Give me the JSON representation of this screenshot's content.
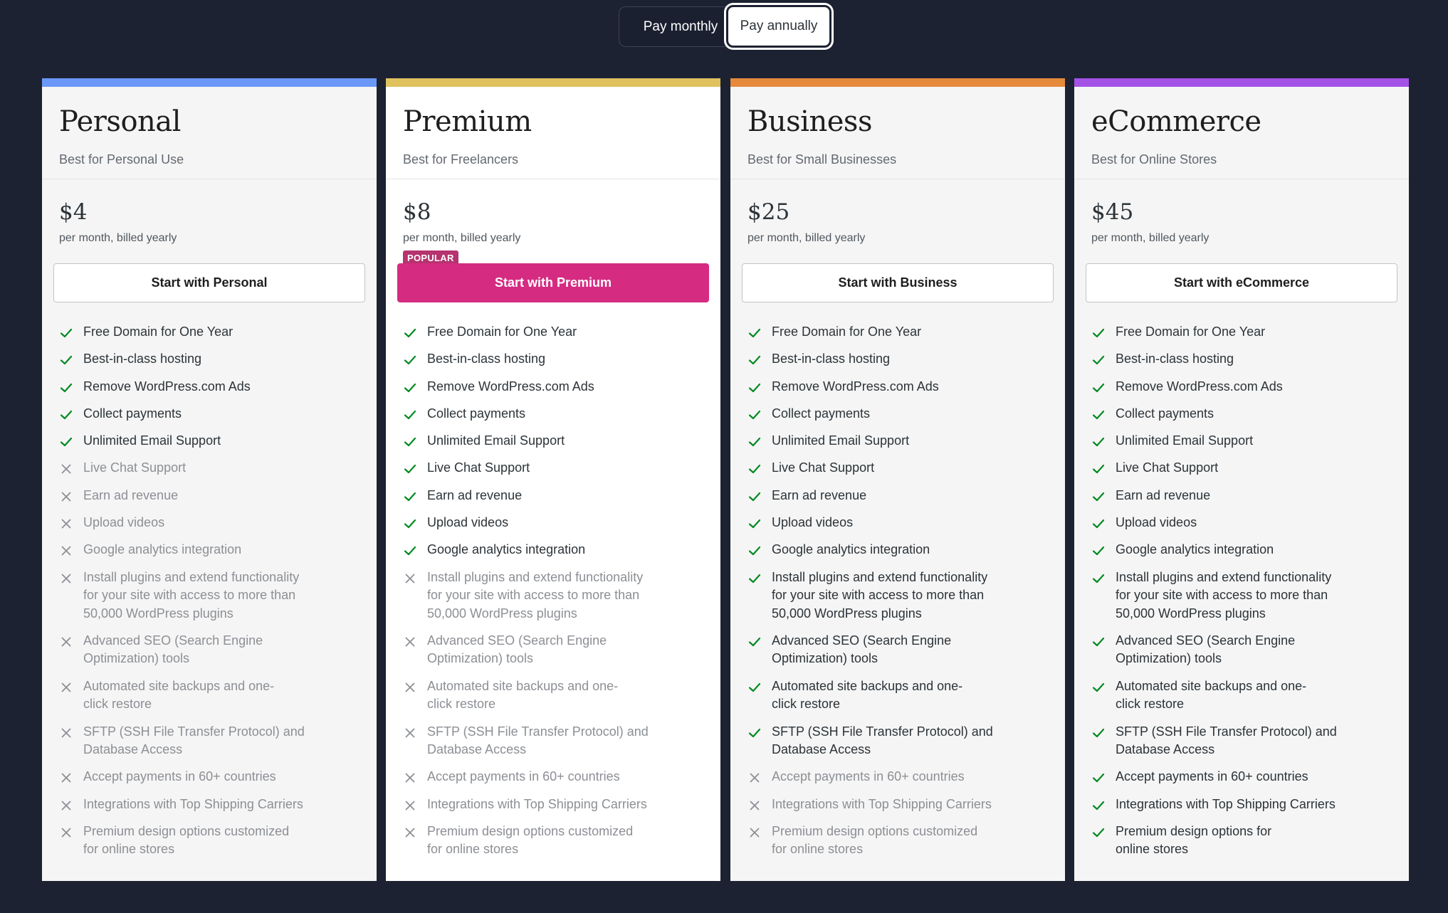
{
  "billing_toggle": {
    "monthly_label": "Pay monthly",
    "annual_label": "Pay annually",
    "selected": "annual"
  },
  "colors": {
    "background": "#1d2232",
    "check": "#008a20",
    "cross": "#8c8f94",
    "cta_primary": "#d52c82",
    "badge": "#b5336f"
  },
  "plans": [
    {
      "name": "Personal",
      "subtitle": "Best for Personal Use",
      "badge": "",
      "price": "$4",
      "period": "per month, billed yearly",
      "cta": "Start with Personal",
      "accent": "#6b97f7",
      "features": [
        {
          "label": "Free Domain for One Year",
          "included": true
        },
        {
          "label": "Best-in-class hosting",
          "included": true
        },
        {
          "label": "Remove WordPress.com Ads",
          "included": true
        },
        {
          "label": "Collect payments",
          "included": true
        },
        {
          "label": "Unlimited Email Support",
          "included": true
        },
        {
          "label": "Live Chat Support",
          "included": false
        },
        {
          "label": "Earn ad revenue",
          "included": false
        },
        {
          "label": "Upload videos",
          "included": false
        },
        {
          "label": "Google analytics integration",
          "included": false
        },
        {
          "label": "Install plugins and extend functionality\nfor your site with access to more than\n50,000 WordPress plugins",
          "included": false
        },
        {
          "label": "Advanced SEO (Search Engine\nOptimization) tools",
          "included": false
        },
        {
          "label": "Automated site backups and one-\nclick restore",
          "included": false
        },
        {
          "label": "SFTP (SSH File Transfer Protocol) and\nDatabase Access",
          "included": false
        },
        {
          "label": "Accept payments in 60+ countries",
          "included": false
        },
        {
          "label": "Integrations with Top Shipping Carriers",
          "included": false
        },
        {
          "label": "Premium design options customized\nfor online stores",
          "included": false
        }
      ]
    },
    {
      "name": "Premium",
      "subtitle": "Best for Freelancers",
      "badge": "POPULAR",
      "price": "$8",
      "period": "per month, billed yearly",
      "cta": "Start with Premium",
      "accent": "#dfc15e",
      "features": [
        {
          "label": "Free Domain for One Year",
          "included": true
        },
        {
          "label": "Best-in-class hosting",
          "included": true
        },
        {
          "label": "Remove WordPress.com Ads",
          "included": true
        },
        {
          "label": "Collect payments",
          "included": true
        },
        {
          "label": "Unlimited Email Support",
          "included": true
        },
        {
          "label": "Live Chat Support",
          "included": true
        },
        {
          "label": "Earn ad revenue",
          "included": true
        },
        {
          "label": "Upload videos",
          "included": true
        },
        {
          "label": "Google analytics integration",
          "included": true
        },
        {
          "label": "Install plugins and extend functionality\nfor your site with access to more than\n50,000 WordPress plugins",
          "included": false
        },
        {
          "label": "Advanced SEO (Search Engine\nOptimization) tools",
          "included": false
        },
        {
          "label": "Automated site backups and one-\nclick restore",
          "included": false
        },
        {
          "label": "SFTP (SSH File Transfer Protocol) and\nDatabase Access",
          "included": false
        },
        {
          "label": "Accept payments in 60+ countries",
          "included": false
        },
        {
          "label": "Integrations with Top Shipping Carriers",
          "included": false
        },
        {
          "label": "Premium design options customized\nfor online stores",
          "included": false
        }
      ]
    },
    {
      "name": "Business",
      "subtitle": "Best for Small Businesses",
      "badge": "",
      "price": "$25",
      "period": "per month, billed yearly",
      "cta": "Start with Business",
      "accent": "#e58a3b",
      "features": [
        {
          "label": "Free Domain for One Year",
          "included": true
        },
        {
          "label": "Best-in-class hosting",
          "included": true
        },
        {
          "label": "Remove WordPress.com Ads",
          "included": true
        },
        {
          "label": "Collect payments",
          "included": true
        },
        {
          "label": "Unlimited Email Support",
          "included": true
        },
        {
          "label": "Live Chat Support",
          "included": true
        },
        {
          "label": "Earn ad revenue",
          "included": true
        },
        {
          "label": "Upload videos",
          "included": true
        },
        {
          "label": "Google analytics integration",
          "included": true
        },
        {
          "label": "Install plugins and extend functionality\nfor your site with access to more than\n50,000 WordPress plugins",
          "included": true
        },
        {
          "label": "Advanced SEO (Search Engine\nOptimization) tools",
          "included": true
        },
        {
          "label": "Automated site backups and one-\nclick restore",
          "included": true
        },
        {
          "label": "SFTP (SSH File Transfer Protocol) and\nDatabase Access",
          "included": true
        },
        {
          "label": "Accept payments in 60+ countries",
          "included": false
        },
        {
          "label": "Integrations with Top Shipping Carriers",
          "included": false
        },
        {
          "label": "Premium design options customized\nfor online stores",
          "included": false
        }
      ]
    },
    {
      "name": "eCommerce",
      "subtitle": "Best for Online Stores",
      "badge": "",
      "price": "$45",
      "period": "per month, billed yearly",
      "cta": "Start with eCommerce",
      "accent": "#a452e6",
      "features": [
        {
          "label": "Free Domain for One Year",
          "included": true
        },
        {
          "label": "Best-in-class hosting",
          "included": true
        },
        {
          "label": "Remove WordPress.com Ads",
          "included": true
        },
        {
          "label": "Collect payments",
          "included": true
        },
        {
          "label": "Unlimited Email Support",
          "included": true
        },
        {
          "label": "Live Chat Support",
          "included": true
        },
        {
          "label": "Earn ad revenue",
          "included": true
        },
        {
          "label": "Upload videos",
          "included": true
        },
        {
          "label": "Google analytics integration",
          "included": true
        },
        {
          "label": "Install plugins and extend functionality\nfor your site with access to more than\n50,000 WordPress plugins",
          "included": true
        },
        {
          "label": "Advanced SEO (Search Engine\nOptimization) tools",
          "included": true
        },
        {
          "label": "Automated site backups and one-\nclick restore",
          "included": true
        },
        {
          "label": "SFTP (SSH File Transfer Protocol) and\nDatabase Access",
          "included": true
        },
        {
          "label": "Accept payments in 60+ countries",
          "included": true
        },
        {
          "label": "Integrations with Top Shipping Carriers",
          "included": true
        },
        {
          "label": "Premium design options for\nonline stores",
          "included": true
        }
      ]
    }
  ]
}
